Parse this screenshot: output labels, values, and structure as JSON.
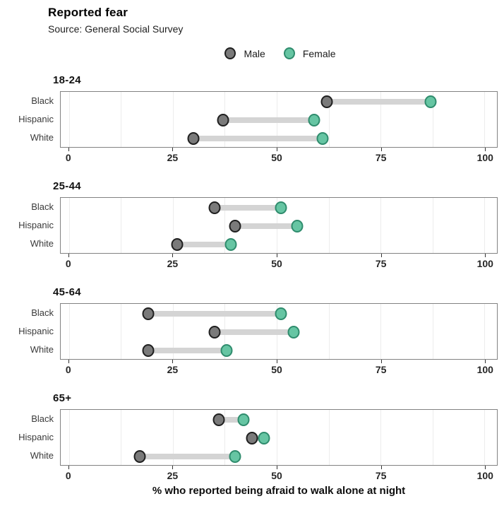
{
  "title": "Reported fear",
  "subtitle": "Source: General Social Survey",
  "legend": {
    "items": [
      {
        "key": "male",
        "label": "Male"
      },
      {
        "key": "female",
        "label": "Female"
      }
    ]
  },
  "colors": {
    "male_fill": "#7a7a7a",
    "male_stroke": "#1f1f1f",
    "female_fill": "#66c5a3",
    "female_stroke": "#2f8c6d",
    "connector": "#d4d4d4",
    "gridline": "#ececec",
    "panel_border": "#828282"
  },
  "chart_data": {
    "type": "dumbbell",
    "title": "Reported fear",
    "subtitle": "Source: General Social Survey",
    "xlabel": "% who reported being afraid to walk alone at night",
    "x_ticks": [
      0,
      25,
      50,
      75,
      100
    ],
    "xlim": [
      -2,
      103
    ],
    "minor_grid_step": 12.5,
    "grid": true,
    "legend_position": "top",
    "categories": [
      "Black",
      "Hispanic",
      "White"
    ],
    "series_names": [
      "Male",
      "Female"
    ],
    "panels": [
      {
        "title": "18-24",
        "rows": [
          {
            "category": "Black",
            "male": 62,
            "female": 87
          },
          {
            "category": "Hispanic",
            "male": 37,
            "female": 59
          },
          {
            "category": "White",
            "male": 30,
            "female": 61
          }
        ]
      },
      {
        "title": "25-44",
        "rows": [
          {
            "category": "Black",
            "male": 35,
            "female": 51
          },
          {
            "category": "Hispanic",
            "male": 40,
            "female": 55
          },
          {
            "category": "White",
            "male": 26,
            "female": 39
          }
        ]
      },
      {
        "title": "45-64",
        "rows": [
          {
            "category": "Black",
            "male": 19,
            "female": 51
          },
          {
            "category": "Hispanic",
            "male": 35,
            "female": 54
          },
          {
            "category": "White",
            "male": 19,
            "female": 38
          }
        ]
      },
      {
        "title": "65+",
        "rows": [
          {
            "category": "Black",
            "male": 36,
            "female": 42
          },
          {
            "category": "Hispanic",
            "male": 44,
            "female": 47
          },
          {
            "category": "White",
            "male": 17,
            "female": 40
          }
        ]
      }
    ]
  }
}
